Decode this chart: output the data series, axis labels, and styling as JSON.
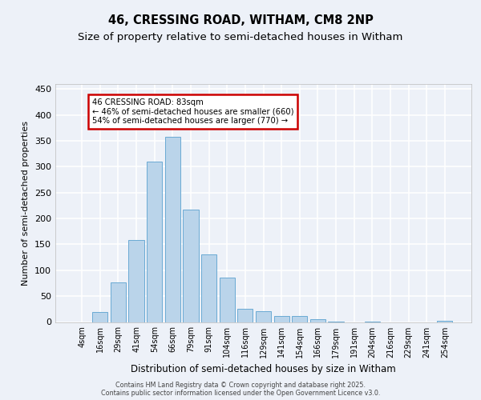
{
  "title1": "46, CRESSING ROAD, WITHAM, CM8 2NP",
  "title2": "Size of property relative to semi-detached houses in Witham",
  "xlabel": "Distribution of semi-detached houses by size in Witham",
  "ylabel": "Number of semi-detached properties",
  "categories": [
    "4sqm",
    "16sqm",
    "29sqm",
    "41sqm",
    "54sqm",
    "66sqm",
    "79sqm",
    "91sqm",
    "104sqm",
    "116sqm",
    "129sqm",
    "141sqm",
    "154sqm",
    "166sqm",
    "179sqm",
    "191sqm",
    "204sqm",
    "216sqm",
    "229sqm",
    "241sqm",
    "254sqm"
  ],
  "values": [
    0,
    20,
    77,
    158,
    310,
    358,
    218,
    130,
    86,
    26,
    21,
    11,
    11,
    5,
    1,
    0,
    1,
    0,
    0,
    0,
    3
  ],
  "bar_color": "#bad4ea",
  "bar_edge_color": "#6aaad4",
  "bg_color": "#edf1f8",
  "grid_color": "#ffffff",
  "annotation_line1": "46 CRESSING ROAD: 83sqm",
  "annotation_line2": "← 46% of semi-detached houses are smaller (660)",
  "annotation_line3": "54% of semi-detached houses are larger (770) →",
  "annotation_box_facecolor": "#ffffff",
  "annotation_box_edgecolor": "#cc0000",
  "ylim_max": 460,
  "yticks": [
    0,
    50,
    100,
    150,
    200,
    250,
    300,
    350,
    400,
    450
  ],
  "footer": "Contains HM Land Registry data © Crown copyright and database right 2025.\nContains public sector information licensed under the Open Government Licence v3.0."
}
